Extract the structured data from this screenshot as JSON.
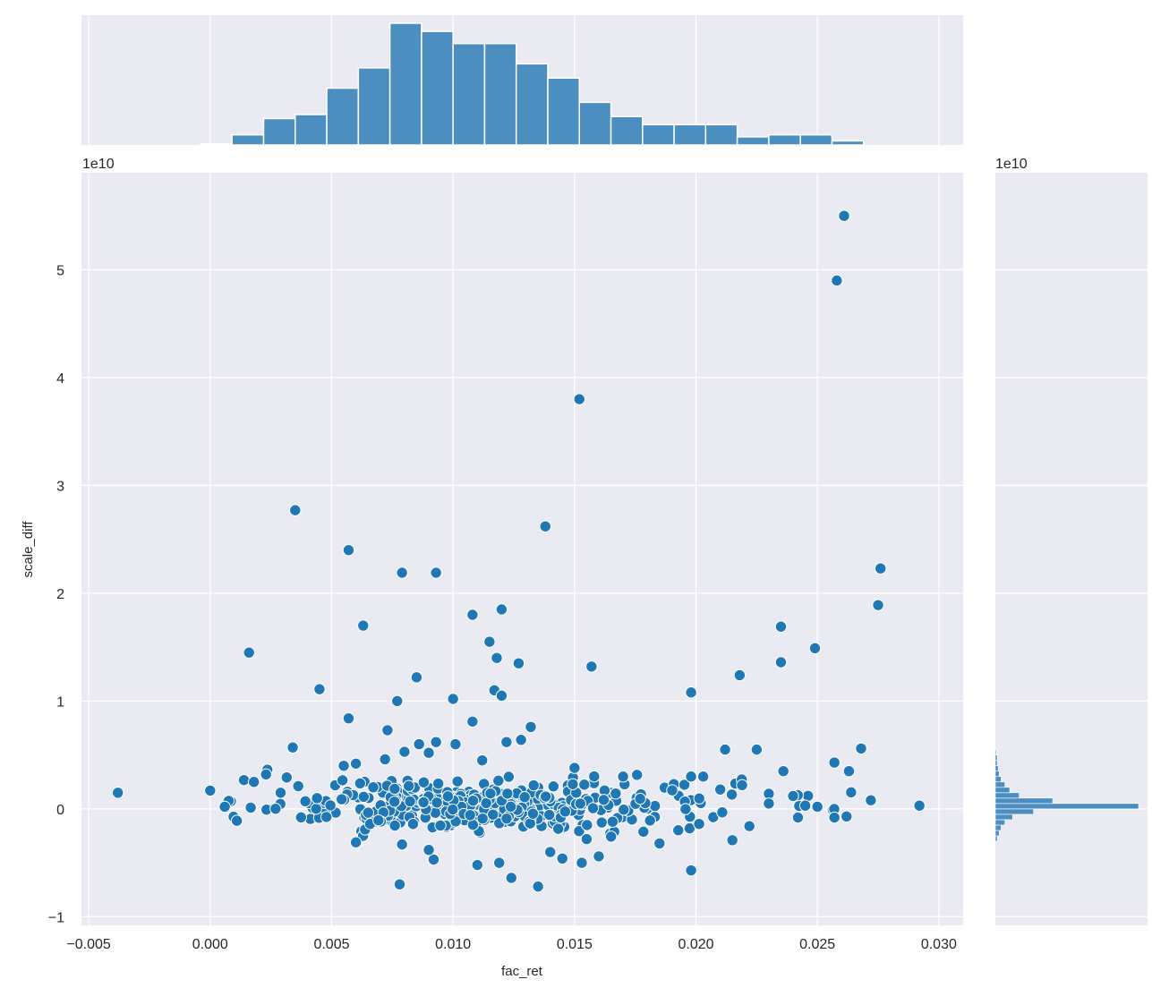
{
  "chart_data": {
    "type": "scatter",
    "xlabel": "fac_ret",
    "ylabel": "scale_diff",
    "y_offset_label": "1e10",
    "x_offset_label_right": "1e10",
    "xlim": [
      -0.0053,
      0.031
    ],
    "ylim": [
      -1.08,
      5.9
    ],
    "x_ticks": [
      "-0.005",
      "0.000",
      "0.005",
      "0.010",
      "0.015",
      "0.020",
      "0.025",
      "0.030"
    ],
    "y_ticks": [
      "-1",
      "0",
      "1",
      "2",
      "3",
      "4",
      "5"
    ],
    "y_units": "1e10",
    "grid": true,
    "colors": {
      "point": "#1f77b4",
      "hist": "#4c8ec0",
      "hist_edge": "#ffffff",
      "background": "#eaeaf2",
      "grid": "#ffffff"
    },
    "points": [
      [
        -0.0038,
        0.15
      ],
      [
        0.0,
        0.17
      ],
      [
        0.0016,
        1.45
      ],
      [
        0.0035,
        2.77
      ],
      [
        0.0057,
        2.4
      ],
      [
        0.0079,
        2.19
      ],
      [
        0.0093,
        2.19
      ],
      [
        0.0063,
        1.7
      ],
      [
        0.0045,
        1.11
      ],
      [
        0.0057,
        0.84
      ],
      [
        0.0034,
        0.57
      ],
      [
        0.0073,
        0.73
      ],
      [
        0.0077,
        1.0
      ],
      [
        0.0085,
        1.22
      ],
      [
        0.01,
        1.02
      ],
      [
        0.0108,
        1.8
      ],
      [
        0.012,
        1.85
      ],
      [
        0.0115,
        1.55
      ],
      [
        0.0118,
        1.4
      ],
      [
        0.0127,
        1.35
      ],
      [
        0.0117,
        1.1
      ],
      [
        0.012,
        1.05
      ],
      [
        0.0108,
        0.81
      ],
      [
        0.0132,
        0.76
      ],
      [
        0.0138,
        2.62
      ],
      [
        0.0152,
        3.8
      ],
      [
        0.0157,
        1.32
      ],
      [
        0.0198,
        1.08
      ],
      [
        0.0218,
        1.24
      ],
      [
        0.0235,
        1.69
      ],
      [
        0.0235,
        1.36
      ],
      [
        0.0249,
        1.49
      ],
      [
        0.0258,
        4.9
      ],
      [
        0.0261,
        5.5
      ],
      [
        0.0275,
        1.89
      ],
      [
        0.0276,
        2.23
      ],
      [
        0.0268,
        0.56
      ],
      [
        0.0263,
        0.35
      ],
      [
        0.0257,
        0.43
      ],
      [
        0.0272,
        0.08
      ],
      [
        0.0292,
        0.03
      ],
      [
        0.0262,
        -0.07
      ],
      [
        0.0257,
        -0.08
      ],
      [
        0.0078,
        -0.7
      ],
      [
        0.0135,
        -0.72
      ],
      [
        0.0124,
        -0.64
      ],
      [
        0.0198,
        -0.57
      ],
      [
        0.011,
        -0.52
      ],
      [
        0.0119,
        -0.5
      ],
      [
        0.0153,
        -0.5
      ],
      [
        0.0092,
        -0.47
      ],
      [
        0.0145,
        -0.46
      ],
      [
        0.016,
        -0.44
      ],
      [
        0.014,
        -0.4
      ],
      [
        0.009,
        -0.38
      ],
      [
        0.0079,
        -0.33
      ],
      [
        0.0185,
        -0.32
      ],
      [
        0.006,
        -0.31
      ],
      [
        0.0215,
        -0.29
      ],
      [
        0.0155,
        -0.28
      ],
      [
        0.0011,
        -0.11
      ],
      [
        0.0006,
        0.02
      ],
      [
        0.0018,
        0.25
      ],
      [
        0.0023,
        0.32
      ],
      [
        0.0029,
        0.15
      ],
      [
        0.0044,
        0.1
      ],
      [
        0.0055,
        0.4
      ],
      [
        0.006,
        0.42
      ],
      [
        0.0072,
        0.46
      ],
      [
        0.008,
        0.53
      ],
      [
        0.0086,
        0.6
      ],
      [
        0.009,
        0.52
      ],
      [
        0.0093,
        0.62
      ],
      [
        0.0101,
        0.6
      ],
      [
        0.0112,
        0.45
      ],
      [
        0.0122,
        0.62
      ],
      [
        0.0128,
        0.64
      ],
      [
        0.015,
        0.38
      ],
      [
        0.017,
        0.3
      ],
      [
        0.0198,
        0.3
      ],
      [
        0.0203,
        0.3
      ],
      [
        0.0212,
        0.55
      ],
      [
        0.0225,
        0.55
      ],
      [
        0.0236,
        0.35
      ],
      [
        0.0219,
        0.22
      ],
      [
        0.021,
        0.18
      ],
      [
        0.023,
        0.14
      ],
      [
        0.024,
        0.12
      ],
      [
        0.0242,
        -0.08
      ],
      [
        0.0222,
        -0.16
      ],
      [
        0.023,
        0.05
      ],
      [
        0.0245,
        0.03
      ],
      [
        0.025,
        0.02
      ]
    ],
    "cluster": {
      "x_mean": 0.0115,
      "x_sd": 0.0045,
      "y_mean": 0.02,
      "y_sd": 0.12,
      "count": 380
    },
    "top_hist": {
      "bin_edges": [
        -0.0004,
        0.0009,
        0.0022,
        0.0035,
        0.0048,
        0.0061,
        0.0074,
        0.0087,
        0.01,
        0.0113,
        0.0126,
        0.0139,
        0.0152,
        0.0165,
        0.0178,
        0.0191,
        0.0204,
        0.0217,
        0.023,
        0.0243,
        0.0256,
        0.0269,
        0.0282
      ],
      "counts": [
        0.5,
        5,
        13,
        15,
        28,
        38,
        60,
        56,
        50,
        50,
        40,
        33,
        21,
        14,
        10,
        10,
        10,
        4,
        5,
        5,
        2,
        0
      ]
    },
    "right_hist": {
      "bin_edges": [
        -0.3,
        -0.25,
        -0.2,
        -0.15,
        -0.1,
        -0.05,
        0.0,
        0.05,
        0.1,
        0.15,
        0.2,
        0.25,
        0.3,
        0.35,
        0.4,
        0.45,
        0.5,
        0.55
      ],
      "counts": [
        2,
        4,
        6,
        10,
        18,
        40,
        150,
        60,
        25,
        15,
        10,
        6,
        4,
        3,
        2,
        2,
        1
      ]
    }
  }
}
